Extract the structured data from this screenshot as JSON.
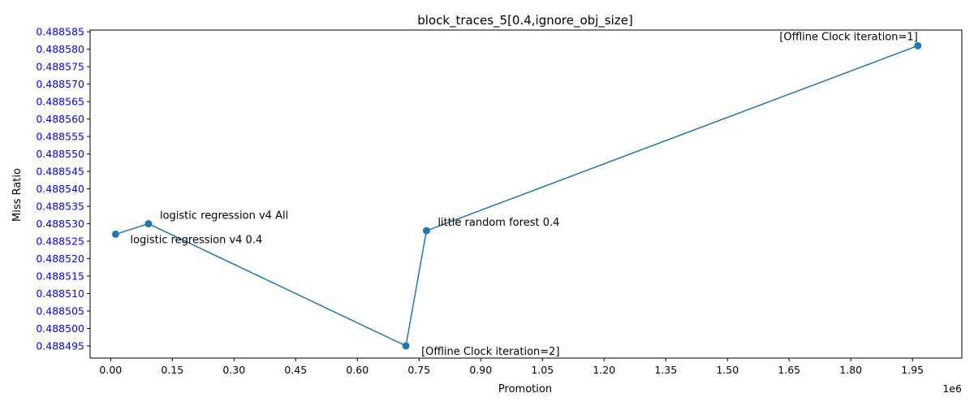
{
  "chart_data": {
    "type": "line",
    "title": "block_traces_5[0.4,ignore_obj_size]",
    "xlabel": "Promotion",
    "ylabel": "Miss Ratio",
    "x_offset_label": "1e6",
    "xlim": [
      -0.05,
      2.07
    ],
    "ylim": [
      0.4884915,
      0.4885855
    ],
    "xticks": [
      0.0,
      0.15,
      0.3,
      0.45,
      0.6,
      0.75,
      0.9,
      1.05,
      1.2,
      1.35,
      1.5,
      1.65,
      1.8,
      1.95
    ],
    "xtick_labels": [
      "0.00",
      "0.15",
      "0.30",
      "0.45",
      "0.60",
      "0.75",
      "0.90",
      "1.05",
      "1.20",
      "1.35",
      "1.50",
      "1.65",
      "1.80",
      "1.95"
    ],
    "yticks": [
      0.488495,
      0.4885,
      0.488505,
      0.48851,
      0.488515,
      0.48852,
      0.488525,
      0.48853,
      0.488535,
      0.48854,
      0.488545,
      0.48855,
      0.488555,
      0.48856,
      0.488565,
      0.48857,
      0.488575,
      0.48858,
      0.488585
    ],
    "ytick_labels": [
      "0.488495",
      "0.488500",
      "0.488505",
      "0.488510",
      "0.488515",
      "0.488520",
      "0.488525",
      "0.488530",
      "0.488535",
      "0.488540",
      "0.488545",
      "0.488550",
      "0.488555",
      "0.488560",
      "0.488565",
      "0.488570",
      "0.488575",
      "0.488580",
      "0.488585"
    ],
    "series": [
      {
        "x": [
          0.012,
          0.092,
          0.718,
          0.768,
          1.963
        ],
        "y": [
          0.488527,
          0.48853,
          0.488495,
          0.488528,
          0.488581
        ],
        "marker": "circle",
        "color": "#1f77b4"
      }
    ],
    "annotations": [
      {
        "text": "logistic regression v4 0.4",
        "x": 0.012,
        "y": 0.488527,
        "anchor": "start",
        "dx": 18,
        "dy": 11
      },
      {
        "text": "logistic regression v4 All",
        "x": 0.092,
        "y": 0.48853,
        "anchor": "start",
        "dx": 14,
        "dy": -6
      },
      {
        "text": "[Offline Clock iteration=2]",
        "x": 0.718,
        "y": 0.488495,
        "anchor": "start",
        "dx": 19,
        "dy": 11
      },
      {
        "text": "little random forest 0.4",
        "x": 0.768,
        "y": 0.488528,
        "anchor": "start",
        "dx": 14,
        "dy": -6
      },
      {
        "text": "[Offline Clock iteration=1]",
        "x": 1.963,
        "y": 0.488581,
        "anchor": "end",
        "dx": 0,
        "dy": -7
      }
    ],
    "ytick_color": "#0000ff",
    "grid": false
  }
}
